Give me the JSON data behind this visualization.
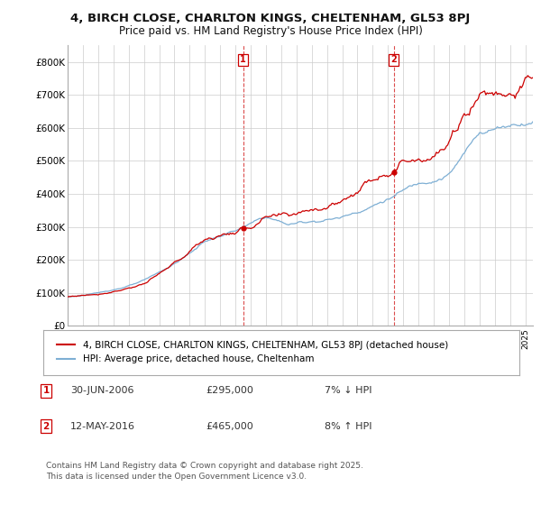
{
  "title1": "4, BIRCH CLOSE, CHARLTON KINGS, CHELTENHAM, GL53 8PJ",
  "title2": "Price paid vs. HM Land Registry's House Price Index (HPI)",
  "bg_color": "#ffffff",
  "plot_bg_color": "#ffffff",
  "grid_color": "#cccccc",
  "house_color": "#cc0000",
  "hpi_color": "#7eafd4",
  "ylim": [
    0,
    850000
  ],
  "yticks": [
    0,
    100000,
    200000,
    300000,
    400000,
    500000,
    600000,
    700000,
    800000
  ],
  "ytick_labels": [
    "£0",
    "£100K",
    "£200K",
    "£300K",
    "£400K",
    "£500K",
    "£600K",
    "£700K",
    "£800K"
  ],
  "sale1_date": 2006.5,
  "sale1_price": 295000,
  "sale2_date": 2016.37,
  "sale2_price": 465000,
  "legend_line1": "4, BIRCH CLOSE, CHARLTON KINGS, CHELTENHAM, GL53 8PJ (detached house)",
  "legend_line2": "HPI: Average price, detached house, Cheltenham",
  "note1_date": "30-JUN-2006",
  "note1_price": "£295,000",
  "note1_hpi": "7% ↓ HPI",
  "note2_date": "12-MAY-2016",
  "note2_price": "£465,000",
  "note2_hpi": "8% ↑ HPI",
  "footnote": "Contains HM Land Registry data © Crown copyright and database right 2025.\nThis data is licensed under the Open Government Licence v3.0.",
  "xmin": 1995,
  "xmax": 2025.5
}
